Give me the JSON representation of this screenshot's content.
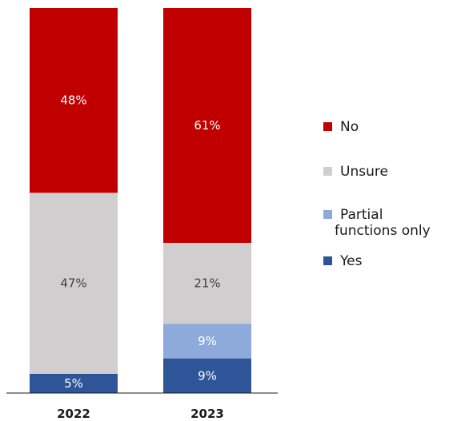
{
  "chart_data": {
    "type": "bar",
    "stacked": true,
    "categories": [
      "2022",
      "2023"
    ],
    "series": [
      {
        "name": "Yes",
        "values": [
          5,
          9
        ],
        "labels": [
          "5%",
          "9%"
        ],
        "color": "#2e5597"
      },
      {
        "name": "Partial functions only",
        "values": [
          0,
          9
        ],
        "labels": [
          "",
          "9%"
        ],
        "color": "#8eaadb"
      },
      {
        "name": "Unsure",
        "values": [
          47,
          21
        ],
        "labels": [
          "47%",
          "21%"
        ],
        "color": "#d0cece"
      },
      {
        "name": "No",
        "values": [
          48,
          61
        ],
        "labels": [
          "48%",
          "61%"
        ],
        "color": "#c00000"
      }
    ],
    "legend": {
      "position": "right",
      "items": [
        {
          "label": "No",
          "color": "#c00000"
        },
        {
          "label": "Unsure",
          "color": "#d0cece"
        },
        {
          "label": "Partial functions only",
          "lines": [
            "Partial",
            "functions only"
          ],
          "color": "#8eaadb"
        },
        {
          "label": "Yes",
          "color": "#2e5597"
        }
      ]
    },
    "ylim": [
      0,
      100
    ],
    "grid": false,
    "title": "",
    "xlabel": "",
    "ylabel": ""
  }
}
